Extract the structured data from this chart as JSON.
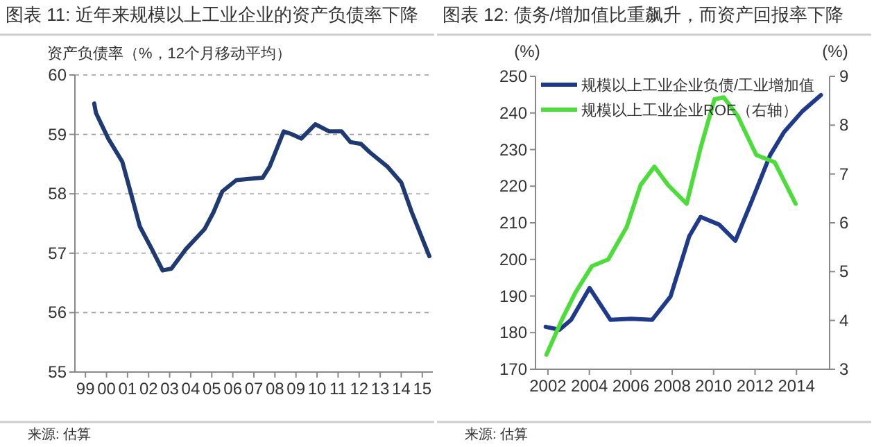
{
  "chart_data": [
    {
      "type": "line",
      "title": "图表 11: 近年来规模以上工业企业的资产负债率下降",
      "ylabel": "资产负债率（%，12个月移动平均）",
      "annotations": [
        "来源: 估算"
      ],
      "xlim": [
        "1999-01",
        "2016-01"
      ],
      "ylim": [
        55,
        60
      ],
      "yticks": [
        55,
        56,
        57,
        58,
        59,
        60
      ],
      "grid": "y",
      "xticks": [
        {
          "value": "1999-07",
          "label": "99"
        },
        {
          "value": "2000-07",
          "label": "00"
        },
        {
          "value": "2001-07",
          "label": "01"
        },
        {
          "value": "2002-07",
          "label": "02"
        },
        {
          "value": "2003-07",
          "label": "03"
        },
        {
          "value": "2004-07",
          "label": "04"
        },
        {
          "value": "2005-07",
          "label": "05"
        },
        {
          "value": "2006-07",
          "label": "06"
        },
        {
          "value": "2007-07",
          "label": "07"
        },
        {
          "value": "2008-07",
          "label": "08"
        },
        {
          "value": "2009-07",
          "label": "09"
        },
        {
          "value": "2010-07",
          "label": "10"
        },
        {
          "value": "2011-07",
          "label": "11"
        },
        {
          "value": "2012-07",
          "label": "12"
        },
        {
          "value": "2013-07",
          "label": "13"
        },
        {
          "value": "2014-07",
          "label": "14"
        },
        {
          "value": "2015-07",
          "label": "15"
        }
      ],
      "series": [
        {
          "color": "#1f3a73",
          "x": [
            "1999-12",
            "2000-01",
            "2000-08",
            "2001-04",
            "2001-09",
            "2002-02",
            "2002-09",
            "2003-03",
            "2003-08",
            "2004-04",
            "2005-03",
            "2005-08",
            "2006-01",
            "2006-09",
            "2007-04",
            "2007-12",
            "2008-04",
            "2008-12",
            "2009-04",
            "2009-10",
            "2010-06",
            "2011-02",
            "2011-09",
            "2012-02",
            "2012-08",
            "2013-01",
            "2013-11",
            "2014-07",
            "2015-01",
            "2015-11"
          ],
          "values": [
            59.52,
            59.36,
            58.93,
            58.54,
            58.0,
            57.45,
            57.06,
            56.71,
            56.74,
            57.06,
            57.41,
            57.69,
            58.04,
            58.23,
            58.25,
            58.27,
            58.46,
            59.05,
            59.01,
            58.93,
            59.17,
            59.05,
            59.05,
            58.87,
            58.84,
            58.7,
            58.46,
            58.19,
            57.69,
            56.95
          ]
        }
      ]
    },
    {
      "type": "line",
      "title": "图表 12: 债务/增加值比重飙升，而资产回报率下降",
      "ylabel": "(%)",
      "y2label": "(%)",
      "annotations": [
        "来源: 估算"
      ],
      "xlim": [
        2001.4,
        2015.6
      ],
      "xticks": [
        2002,
        2004,
        2006,
        2008,
        2010,
        2012,
        2014
      ],
      "ylim": [
        170,
        250
      ],
      "yticks": [
        170,
        180,
        190,
        200,
        210,
        220,
        230,
        240,
        250
      ],
      "y2lim": [
        3,
        9
      ],
      "y2ticks": [
        3,
        4,
        5,
        6,
        7,
        8,
        9
      ],
      "legend": "top left",
      "series": [
        {
          "name": "规模以上工业企业负债/工业增加值",
          "color": "#1f3a8a",
          "x": [
            2001.89,
            2002.56,
            2003.12,
            2004.01,
            2005.02,
            2006.02,
            2007.03,
            2007.92,
            2008.82,
            2009.37,
            2010.27,
            2011.05,
            2011.83,
            2012.73,
            2013.4,
            2014.29,
            2015.18
          ],
          "values": [
            181.6,
            180.8,
            183.5,
            192.2,
            183.5,
            183.8,
            183.5,
            189.9,
            206.3,
            211.6,
            209.5,
            205.1,
            215.8,
            228.5,
            234.8,
            240.5,
            244.9
          ]
        },
        {
          "name": "规模以上工业企业ROE（右轴）",
          "color": "#4cdd3a",
          "axis": "y2",
          "x": [
            2001.93,
            2002.67,
            2003.34,
            2004.12,
            2004.91,
            2005.8,
            2006.47,
            2007.14,
            2007.81,
            2008.7,
            2009.37,
            2010.04,
            2010.49,
            2011.16,
            2012.06,
            2012.95,
            2013.96
          ],
          "values": [
            3.3,
            4.01,
            4.58,
            5.11,
            5.25,
            5.91,
            6.77,
            7.15,
            6.77,
            6.39,
            7.53,
            8.53,
            8.57,
            8.19,
            7.39,
            7.24,
            6.39
          ]
        }
      ]
    }
  ]
}
